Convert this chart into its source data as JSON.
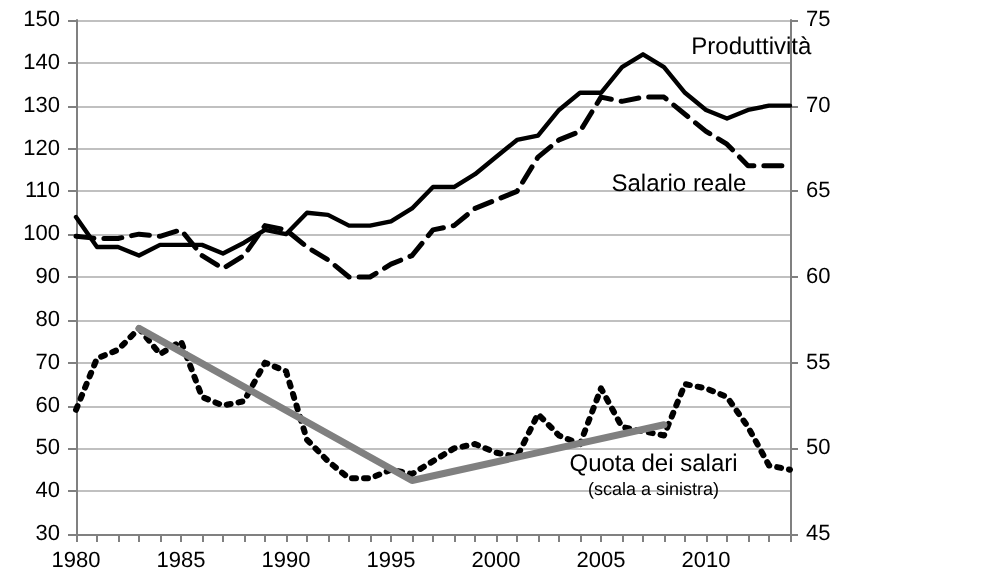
{
  "chart_data": {
    "type": "line",
    "x": [
      1980,
      1981,
      1982,
      1983,
      1984,
      1985,
      1986,
      1987,
      1988,
      1989,
      1990,
      1991,
      1992,
      1993,
      1994,
      1995,
      1996,
      1997,
      1998,
      1999,
      2000,
      2001,
      2002,
      2003,
      2004,
      2005,
      2006,
      2007,
      2008,
      2009,
      2010,
      2011,
      2012,
      2013,
      2014
    ],
    "series": [
      {
        "name": "Produttività",
        "color": "#000000",
        "line_style": "solid",
        "values": [
          104,
          97,
          97,
          95,
          97.5,
          97.5,
          97.5,
          95.5,
          98,
          101,
          100,
          105,
          104.5,
          102,
          102,
          103,
          106,
          111,
          111,
          114,
          118,
          122,
          123,
          129,
          133,
          133,
          139,
          142,
          139,
          133,
          129,
          127,
          129,
          130,
          130
        ]
      },
      {
        "name": "Salario reale",
        "color": "#000000",
        "line_style": "dashed",
        "values": [
          99.5,
          99,
          99,
          100,
          99.5,
          101,
          95,
          92,
          95,
          102,
          101,
          97,
          94,
          90,
          90,
          93,
          95,
          101,
          102,
          106,
          108,
          110,
          118,
          122,
          124,
          132,
          131,
          132,
          132,
          128,
          124,
          121,
          116,
          116,
          116
        ]
      },
      {
        "name": "Quota dei salari",
        "color": "#000000",
        "line_style": "dotted",
        "values": [
          59,
          71,
          73,
          78,
          72,
          75,
          62,
          60,
          61,
          70,
          68,
          52,
          47,
          43,
          43,
          45,
          44,
          47,
          50,
          51,
          49,
          48,
          58,
          53,
          51,
          64,
          55,
          54,
          53,
          65,
          64,
          62,
          55,
          46,
          45
        ]
      },
      {
        "type": "line",
        "color": "#808080",
        "line_style": "solid",
        "x": [
          1983,
          1996,
          2008
        ],
        "values": [
          78,
          42.5,
          55.5
        ]
      }
    ],
    "annotations": [
      "(scala a sinistra)"
    ],
    "xlim": [
      1980,
      2014
    ],
    "xticks": [
      1980,
      {
        "value": 1981,
        "label": null
      },
      {
        "value": 1982,
        "label": null
      },
      {
        "value": 1983,
        "label": null
      },
      {
        "value": 1984,
        "label": null
      },
      1985,
      {
        "value": 1986,
        "label": null
      },
      {
        "value": 1987,
        "label": null
      },
      {
        "value": 1988,
        "label": null
      },
      {
        "value": 1989,
        "label": null
      },
      1990,
      {
        "value": 1991,
        "label": null
      },
      {
        "value": 1992,
        "label": null
      },
      {
        "value": 1993,
        "label": null
      },
      {
        "value": 1994,
        "label": null
      },
      1995,
      {
        "value": 1996,
        "label": null
      },
      {
        "value": 1997,
        "label": null
      },
      {
        "value": 1998,
        "label": null
      },
      {
        "value": 1999,
        "label": null
      },
      2000,
      {
        "value": 2001,
        "label": null
      },
      {
        "value": 2002,
        "label": null
      },
      {
        "value": 2003,
        "label": null
      },
      {
        "value": 2004,
        "label": null
      },
      2005,
      {
        "value": 2006,
        "label": null
      },
      {
        "value": 2007,
        "label": null
      },
      {
        "value": 2008,
        "label": null
      },
      {
        "value": 2009,
        "label": null
      },
      2010,
      {
        "value": 2011,
        "label": null
      },
      {
        "value": 2012,
        "label": null
      },
      {
        "value": 2013,
        "label": null
      },
      {
        "value": 2014,
        "label": null
      }
    ],
    "ylim": [
      30,
      150
    ],
    "yticks": [
      30,
      40,
      50,
      60,
      70,
      80,
      90,
      100,
      110,
      120,
      130,
      140,
      150
    ],
    "y2lim": [
      45,
      75
    ],
    "y2ticks": [
      45,
      50,
      55,
      60,
      65,
      70,
      75
    ],
    "grid": "y",
    "legend": false,
    "marker": "none"
  }
}
